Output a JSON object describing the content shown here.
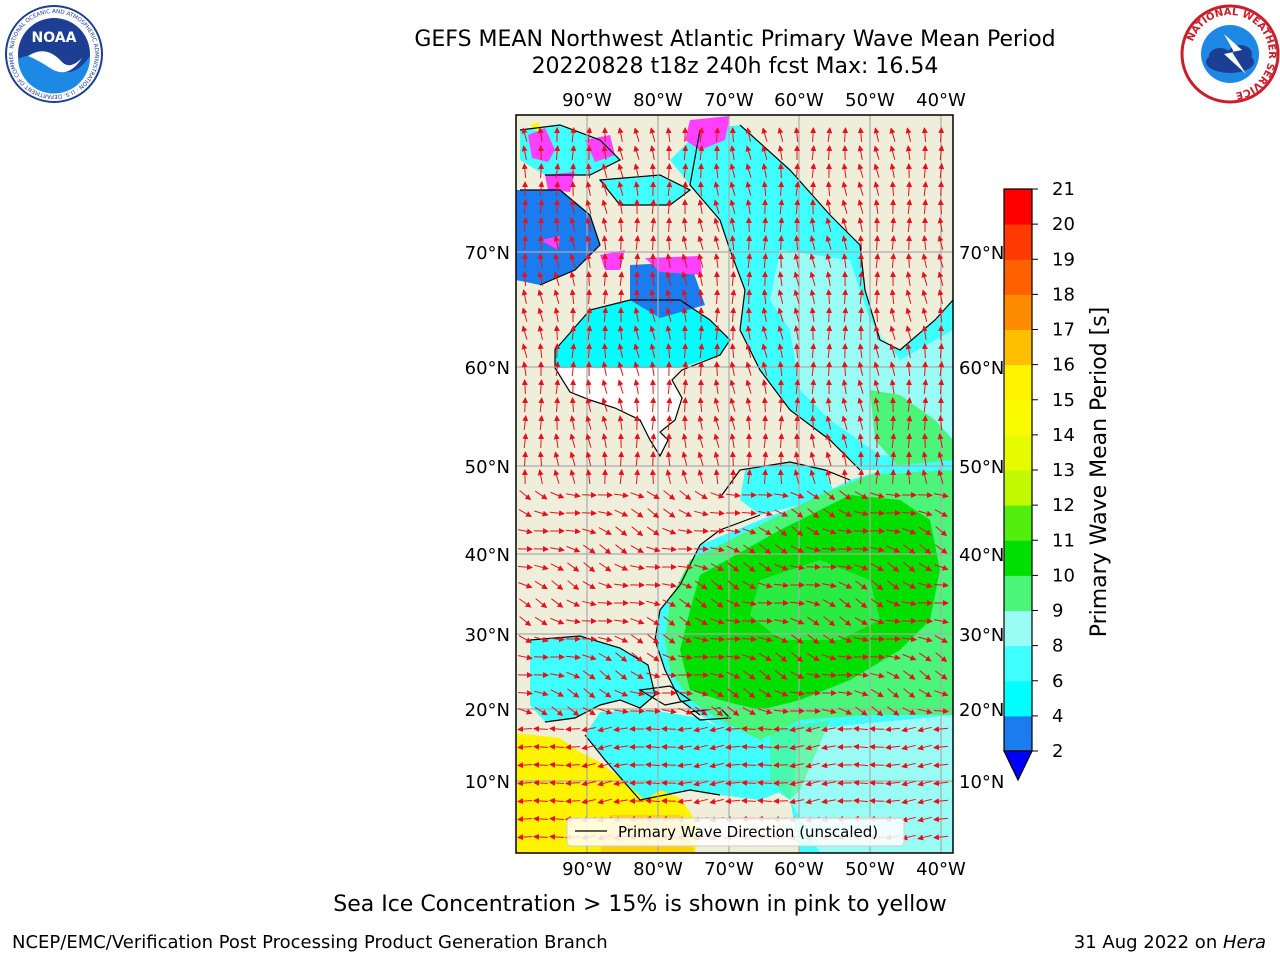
{
  "title_line1": "GEFS MEAN Northwest Atlantic Primary Wave Mean Period",
  "title_line2": "20220828 t18z 240h fcst   Max: 16.54",
  "map": {
    "lon_labels": [
      "90°W",
      "80°W",
      "70°W",
      "60°W",
      "50°W",
      "40°W"
    ],
    "lat_labels": [
      "70°N",
      "60°N",
      "50°N",
      "40°N",
      "30°N",
      "20°N",
      "10°N"
    ],
    "legend_label": "Primary Wave Direction (unscaled)",
    "land_color": "#efeedb",
    "arrow_color": "#e8101a"
  },
  "colorbar": {
    "label": "Primary Wave Mean Period [s]",
    "ticks": [
      "2",
      "4",
      "6",
      "8",
      "9",
      "10",
      "11",
      "12",
      "13",
      "14",
      "15",
      "16",
      "17",
      "18",
      "19",
      "20",
      "21"
    ],
    "colors": [
      "#1b7cf0",
      "#00ffff",
      "#40ffff",
      "#99fdf6",
      "#4af57a",
      "#00e000",
      "#52ee0e",
      "#c2f800",
      "#e6fb00",
      "#fbfb00",
      "#fff300",
      "#ffbe00",
      "#ff8c00",
      "#ff6000",
      "#ff3a00",
      "#ff0000"
    ],
    "extend_color": "#0000ff"
  },
  "logos": {
    "noaa_text": "NOAA",
    "noaa_ring": "NATIONAL OCEANIC AND ATMOSPHERIC ADMINISTRATION · U.S. DEPARTMENT OF COMMERCE",
    "nws_ring": "NATIONAL WEATHER SERVICE"
  },
  "footer": {
    "note": "Sea Ice Concentration > 15% is shown in pink to yellow",
    "credit": "NCEP/EMC/Verification Post Processing Product Generation Branch",
    "date": "31 Aug 2022 on ",
    "machine": "Hera"
  }
}
